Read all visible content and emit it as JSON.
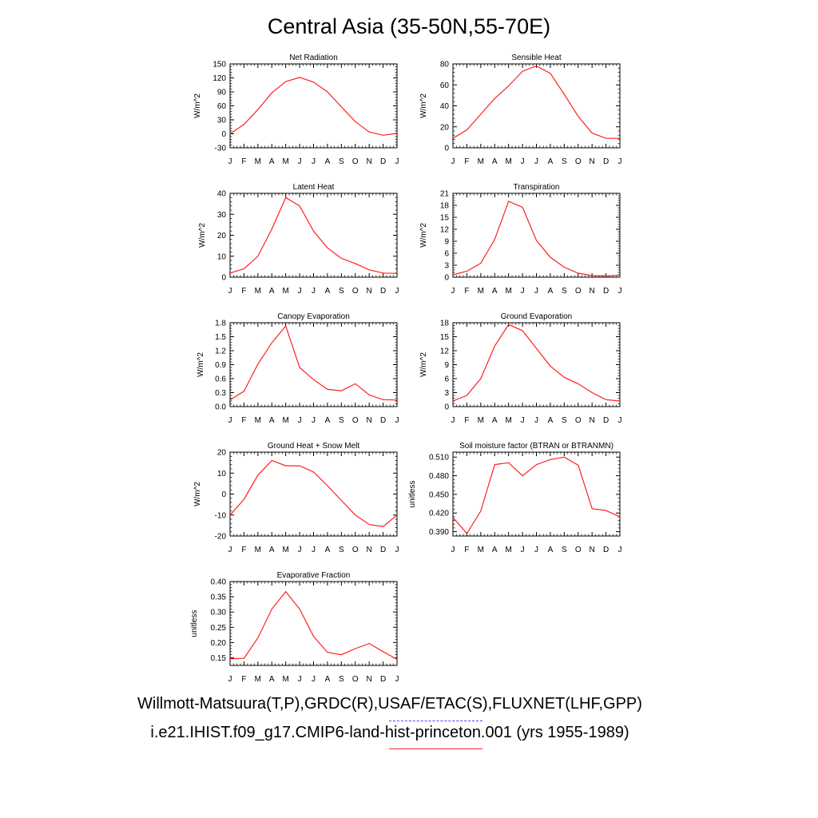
{
  "title": "Central Asia (35-50N,55-70E)",
  "legend": {
    "observations": "Willmott-Matsuura(T,P),GRDC(R),USAF/ETAC(S),FLUXNET(LHF,GPP)",
    "model": "i.e21.IHIST.f09_g17.CMIP6-land-hist-princeton.001 (yrs 1955-1989)",
    "observations_color": "#4444ff",
    "model_color": "#ff2020"
  },
  "chart_data": [
    {
      "type": "line",
      "title": "Net Radiation",
      "ylabel": "W/m^2",
      "categories": [
        "J",
        "F",
        "M",
        "A",
        "M",
        "J",
        "J",
        "A",
        "S",
        "O",
        "N",
        "D",
        "J"
      ],
      "ylim": [
        -30,
        150
      ],
      "yticks": [
        "-30",
        "0",
        "30",
        "60",
        "90",
        "120",
        "150"
      ],
      "series": [
        {
          "values": [
            0,
            20,
            52,
            88,
            112,
            121,
            111,
            90,
            58,
            26,
            4,
            -3,
            1
          ],
          "color": "#ff2020"
        }
      ]
    },
    {
      "type": "line",
      "title": "Sensible Heat",
      "ylabel": "W/m^2",
      "categories": [
        "J",
        "F",
        "M",
        "A",
        "M",
        "J",
        "J",
        "A",
        "S",
        "O",
        "N",
        "D",
        "J"
      ],
      "ylim": [
        0,
        80
      ],
      "yticks": [
        "0",
        "20",
        "40",
        "60",
        "80"
      ],
      "series": [
        {
          "values": [
            9,
            17,
            32,
            47,
            59,
            73,
            78,
            71,
            51,
            30,
            14,
            9,
            9
          ],
          "color": "#ff2020"
        }
      ]
    },
    {
      "type": "line",
      "title": "Latent Heat",
      "ylabel": "W/m^2",
      "categories": [
        "J",
        "F",
        "M",
        "A",
        "M",
        "J",
        "J",
        "A",
        "S",
        "O",
        "N",
        "D",
        "J"
      ],
      "ylim": [
        0,
        40
      ],
      "yticks": [
        "0",
        "10",
        "20",
        "30",
        "40"
      ],
      "series": [
        {
          "values": [
            2,
            4,
            10,
            23,
            38,
            34,
            22,
            14,
            9,
            6.5,
            3.5,
            2,
            1.8
          ],
          "color": "#ff2020"
        }
      ]
    },
    {
      "type": "line",
      "title": "Transpiration",
      "ylabel": "W/m^2",
      "categories": [
        "J",
        "F",
        "M",
        "A",
        "M",
        "J",
        "J",
        "A",
        "S",
        "O",
        "N",
        "D",
        "J"
      ],
      "ylim": [
        0,
        21
      ],
      "yticks": [
        "0",
        "3",
        "6",
        "9",
        "12",
        "15",
        "18",
        "21"
      ],
      "series": [
        {
          "values": [
            0.6,
            1.5,
            3.5,
            9.5,
            19,
            17.5,
            9.2,
            5,
            2.5,
            1,
            0.4,
            0.3,
            0.5
          ],
          "color": "#ff2020"
        }
      ]
    },
    {
      "type": "line",
      "title": "Canopy Evaporation",
      "ylabel": "W/m^2",
      "categories": [
        "J",
        "F",
        "M",
        "A",
        "M",
        "J",
        "J",
        "A",
        "S",
        "O",
        "N",
        "D",
        "J"
      ],
      "ylim": [
        0.0,
        1.8
      ],
      "yticks": [
        "0.0",
        "0.3",
        "0.6",
        "0.9",
        "1.2",
        "1.5",
        "1.8"
      ],
      "series": [
        {
          "values": [
            0.14,
            0.33,
            0.91,
            1.37,
            1.73,
            0.84,
            0.58,
            0.37,
            0.34,
            0.49,
            0.25,
            0.15,
            0.14
          ],
          "color": "#ff2020"
        }
      ]
    },
    {
      "type": "line",
      "title": "Ground Evaporation",
      "ylabel": "W/m^2",
      "categories": [
        "J",
        "F",
        "M",
        "A",
        "M",
        "J",
        "J",
        "A",
        "S",
        "O",
        "N",
        "D",
        "J"
      ],
      "ylim": [
        0,
        18
      ],
      "yticks": [
        "0",
        "3",
        "6",
        "9",
        "12",
        "15",
        "18"
      ],
      "series": [
        {
          "values": [
            1.2,
            2.4,
            6,
            13,
            17.6,
            16.3,
            12.5,
            8.7,
            6.3,
            4.9,
            3,
            1.5,
            1.2
          ],
          "color": "#ff2020"
        }
      ]
    },
    {
      "type": "line",
      "title": "Ground Heat + Snow Melt",
      "ylabel": "W/m^2",
      "categories": [
        "J",
        "F",
        "M",
        "A",
        "M",
        "J",
        "J",
        "A",
        "S",
        "O",
        "N",
        "D",
        "J"
      ],
      "ylim": [
        -20,
        20
      ],
      "yticks": [
        "-20",
        "-10",
        "0",
        "10",
        "20"
      ],
      "series": [
        {
          "values": [
            -10,
            -2.5,
            9,
            16,
            13.5,
            13.5,
            10.5,
            4,
            -3,
            -10,
            -14.5,
            -15.5,
            -10
          ],
          "color": "#ff2020"
        }
      ]
    },
    {
      "type": "line",
      "title": "Soil moisture factor (BTRAN or BTRANMN)",
      "ylabel": "unitless",
      "categories": [
        "J",
        "F",
        "M",
        "A",
        "M",
        "J",
        "J",
        "A",
        "S",
        "O",
        "N",
        "D",
        "J"
      ],
      "ylim": [
        0.383,
        0.518
      ],
      "yticks": [
        "0.390",
        "0.420",
        "0.450",
        "0.480",
        "0.510"
      ],
      "series": [
        {
          "values": [
            0.413,
            0.387,
            0.423,
            0.498,
            0.501,
            0.48,
            0.498,
            0.506,
            0.51,
            0.497,
            0.427,
            0.424,
            0.414
          ],
          "color": "#ff2020"
        }
      ]
    },
    {
      "type": "line",
      "title": "Evaporative Fraction",
      "ylabel": "unitless",
      "categories": [
        "J",
        "F",
        "M",
        "A",
        "M",
        "J",
        "J",
        "A",
        "S",
        "O",
        "N",
        "D",
        "J"
      ],
      "ylim": [
        0.125,
        0.4
      ],
      "yticks": [
        "0.15",
        "0.20",
        "0.25",
        "0.30",
        "0.35",
        "0.40"
      ],
      "series": [
        {
          "values": [
            0.147,
            0.148,
            0.215,
            0.31,
            0.367,
            0.31,
            0.22,
            0.168,
            0.16,
            0.18,
            0.197,
            0.17,
            0.145
          ],
          "color": "#ff2020"
        }
      ]
    }
  ]
}
